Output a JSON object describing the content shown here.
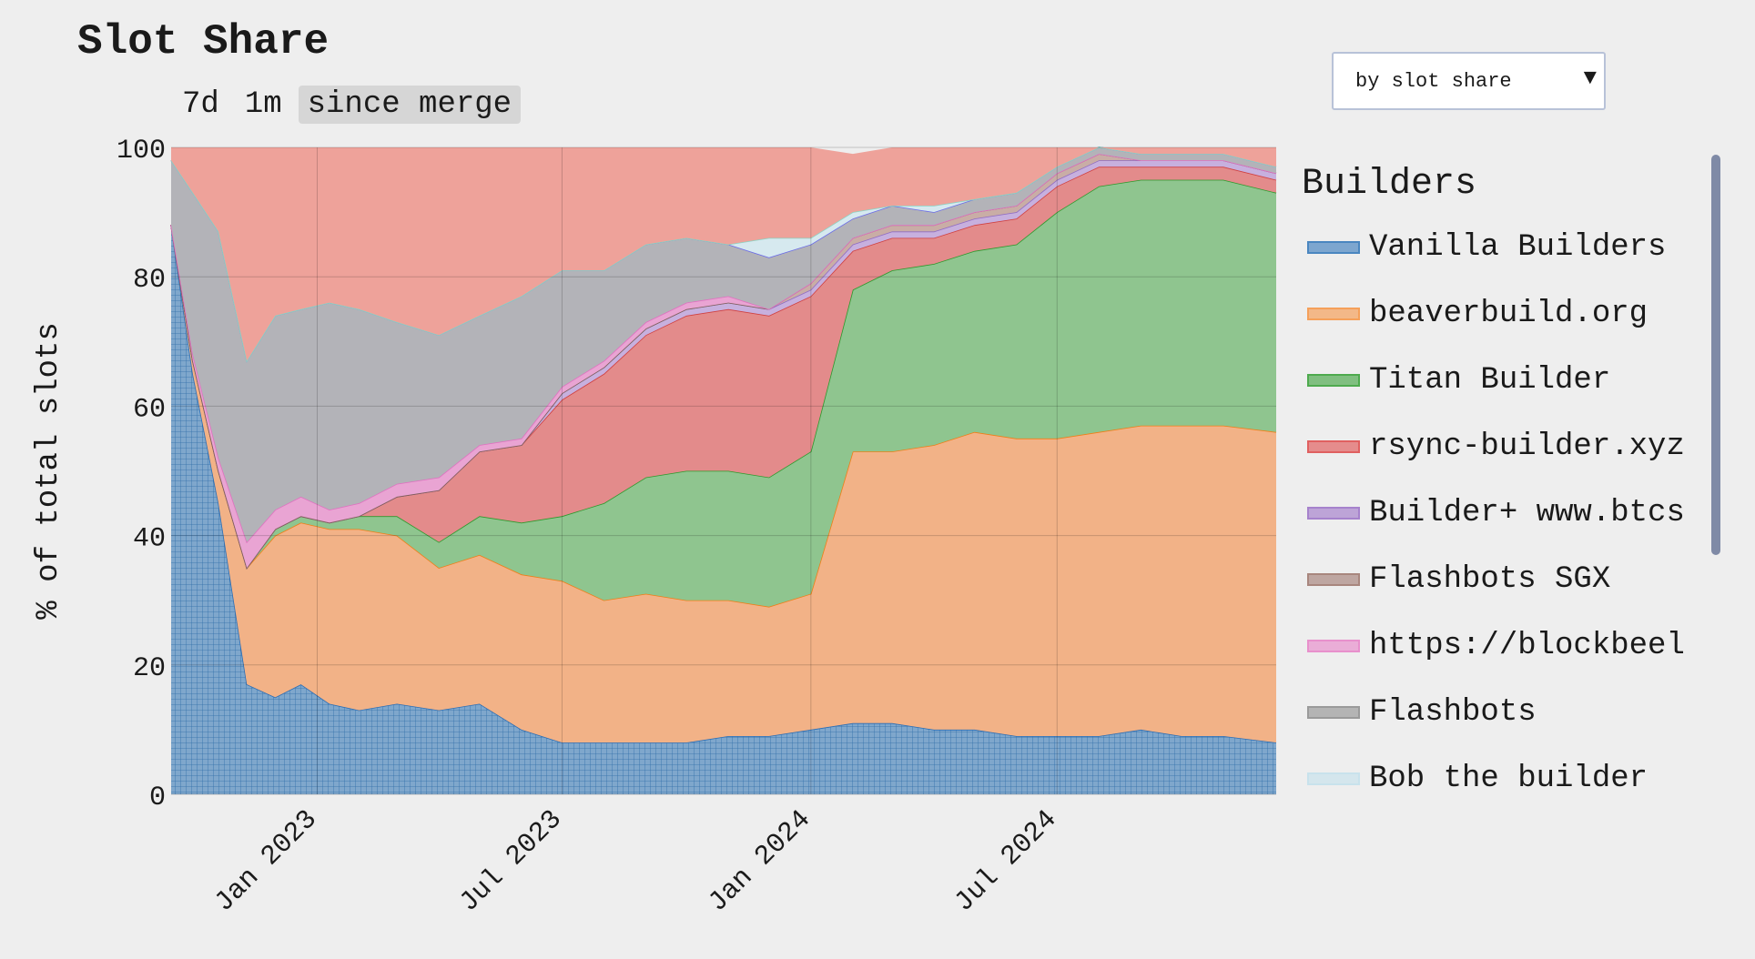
{
  "page": {
    "title": "Slot Share"
  },
  "range_buttons": [
    {
      "label": "7d",
      "active": false
    },
    {
      "label": "1m",
      "active": false
    },
    {
      "label": "since merge",
      "active": true
    }
  ],
  "sort_select": {
    "value": "by slot share"
  },
  "legend": {
    "title": "Builders",
    "items": [
      {
        "label": "Vanilla Builders",
        "color": "#4a86c0"
      },
      {
        "label": "beaverbuild.org",
        "color": "#f5a05a"
      },
      {
        "label": "Titan Builder",
        "color": "#4eaa4e"
      },
      {
        "label": "rsync-builder.xyz",
        "color": "#e06060"
      },
      {
        "label": "Builder+ www.btcs",
        "color": "#a682cc"
      },
      {
        "label": "Flashbots SGX",
        "color": "#a8867e"
      },
      {
        "label": "https://blockbeel",
        "color": "#e890cc"
      },
      {
        "label": "Flashbots",
        "color": "#9a9a9a"
      },
      {
        "label": "Bob the builder",
        "color": "#c8e2ec"
      }
    ]
  },
  "chart_data": {
    "type": "area",
    "stacked": true,
    "ylabel": "% of total slots",
    "xlabel": "",
    "ylim": [
      0,
      100
    ],
    "yticks": [
      0,
      20,
      40,
      60,
      80,
      100
    ],
    "xlim": [
      "2022-09-15",
      "2024-12-10"
    ],
    "xticks": [
      {
        "date": "2023-01-01",
        "label": "Jan 2023"
      },
      {
        "date": "2023-07-01",
        "label": "Jul 2023"
      },
      {
        "date": "2024-01-01",
        "label": "Jan 2024"
      },
      {
        "date": "2024-07-01",
        "label": "Jul 2024"
      }
    ],
    "grid": true,
    "legend_position": "right",
    "x": [
      "2022-09-15",
      "2022-10-01",
      "2022-10-20",
      "2022-11-10",
      "2022-12-01",
      "2022-12-20",
      "2023-01-10",
      "2023-02-01",
      "2023-03-01",
      "2023-04-01",
      "2023-05-01",
      "2023-06-01",
      "2023-07-01",
      "2023-08-01",
      "2023-09-01",
      "2023-10-01",
      "2023-11-01",
      "2023-12-01",
      "2024-01-01",
      "2024-02-01",
      "2024-03-01",
      "2024-04-01",
      "2024-05-01",
      "2024-06-01",
      "2024-07-01",
      "2024-08-01",
      "2024-09-01",
      "2024-10-01",
      "2024-11-01",
      "2024-12-10"
    ],
    "series": [
      {
        "name": "Vanilla Builders",
        "values": [
          88,
          65,
          45,
          17,
          15,
          17,
          14,
          13,
          14,
          13,
          14,
          10,
          8,
          8,
          8,
          8,
          9,
          9,
          10,
          11,
          11,
          10,
          10,
          9,
          9,
          9,
          10,
          9,
          9,
          8
        ]
      },
      {
        "name": "beaverbuild.org",
        "values": [
          0,
          2,
          5,
          18,
          25,
          25,
          27,
          28,
          26,
          22,
          23,
          24,
          25,
          22,
          23,
          22,
          21,
          20,
          21,
          42,
          42,
          44,
          46,
          46,
          46,
          47,
          47,
          48,
          48,
          48
        ]
      },
      {
        "name": "Titan Builder",
        "values": [
          0,
          0,
          0,
          0,
          1,
          1,
          1,
          2,
          3,
          4,
          6,
          8,
          10,
          15,
          18,
          20,
          20,
          20,
          22,
          25,
          28,
          28,
          28,
          30,
          35,
          38,
          38,
          38,
          38,
          37
        ]
      },
      {
        "name": "rsync-builder.xyz",
        "values": [
          0,
          0,
          0,
          0,
          0,
          0,
          0,
          0,
          3,
          8,
          10,
          12,
          18,
          20,
          22,
          24,
          25,
          25,
          24,
          6,
          5,
          4,
          4,
          4,
          4,
          3,
          2,
          2,
          2,
          2
        ]
      },
      {
        "name": "Builder+ www.btcs",
        "values": [
          0,
          0,
          0,
          0,
          0,
          0,
          0,
          0,
          0,
          0,
          0,
          0,
          1,
          1,
          1,
          1,
          1,
          1,
          1,
          1,
          1,
          1,
          1,
          1,
          1,
          1,
          1,
          1,
          1,
          1
        ]
      },
      {
        "name": "Flashbots SGX",
        "values": [
          0,
          0,
          0,
          0,
          0,
          0,
          0,
          0,
          0,
          0,
          0,
          0,
          0,
          0,
          0,
          0,
          0,
          0,
          1,
          1,
          1,
          1,
          1,
          1,
          1,
          1,
          0,
          0,
          0,
          0
        ]
      },
      {
        "name": "https://blockbeel",
        "values": [
          0,
          1,
          2,
          4,
          3,
          3,
          2,
          2,
          2,
          2,
          1,
          1,
          1,
          1,
          1,
          1,
          1,
          0,
          0,
          0,
          0,
          0,
          0,
          0,
          0,
          0,
          0,
          0,
          0,
          0
        ]
      },
      {
        "name": "Flashbots",
        "values": [
          10,
          25,
          35,
          28,
          30,
          29,
          32,
          30,
          25,
          22,
          20,
          22,
          18,
          14,
          12,
          10,
          8,
          8,
          6,
          3,
          3,
          2,
          2,
          2,
          1,
          1,
          1,
          1,
          1,
          1
        ]
      },
      {
        "name": "Bob the builder",
        "values": [
          0,
          0,
          0,
          0,
          0,
          0,
          0,
          0,
          0,
          0,
          0,
          0,
          0,
          0,
          0,
          0,
          0,
          3,
          1,
          1,
          0,
          1,
          0,
          0,
          0,
          0,
          0,
          0,
          0,
          0
        ]
      },
      {
        "name": "",
        "values": [
          2,
          7,
          13,
          33,
          26,
          25,
          24,
          25,
          27,
          29,
          26,
          23,
          19,
          19,
          15,
          14,
          15,
          14,
          14,
          9,
          9,
          9,
          8,
          7,
          3,
          0,
          1,
          1,
          1,
          3
        ]
      }
    ]
  }
}
